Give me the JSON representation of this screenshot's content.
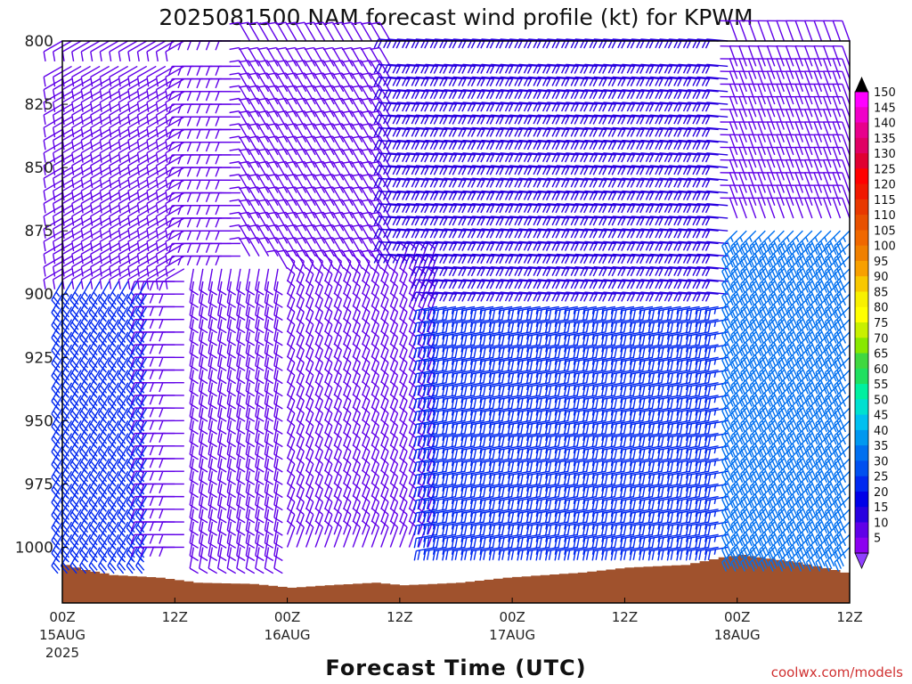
{
  "chart_data": {
    "type": "wind-barb-profile",
    "title": "2025081500 NAM forecast wind profile (kt) for KPWM",
    "xlabel": "Forecast Time (UTC)",
    "ylabel": "",
    "credit": "coolwx.com/models",
    "y_axis": {
      "ticks": [
        "800",
        "825",
        "850",
        "875",
        "900",
        "925",
        "950",
        "975",
        "1000"
      ],
      "range_hpa": [
        800,
        1022
      ]
    },
    "x_axis": {
      "range_hours": [
        0,
        84
      ],
      "ticks": [
        {
          "hour": 0,
          "label": "00Z",
          "sub": "15AUG",
          "sub2": "2025"
        },
        {
          "hour": 12,
          "label": "12Z",
          "sub": "",
          "sub2": ""
        },
        {
          "hour": 24,
          "label": "00Z",
          "sub": "16AUG",
          "sub2": ""
        },
        {
          "hour": 36,
          "label": "12Z",
          "sub": "",
          "sub2": ""
        },
        {
          "hour": 48,
          "label": "00Z",
          "sub": "17AUG",
          "sub2": ""
        },
        {
          "hour": 60,
          "label": "12Z",
          "sub": "",
          "sub2": ""
        },
        {
          "hour": 72,
          "label": "00Z",
          "sub": "18AUG",
          "sub2": ""
        },
        {
          "hour": 84,
          "label": "12Z",
          "sub": "",
          "sub2": ""
        }
      ]
    },
    "colorbar": {
      "labels": [
        "150",
        "145",
        "140",
        "135",
        "130",
        "125",
        "120",
        "115",
        "110",
        "105",
        "100",
        "95",
        "90",
        "85",
        "80",
        "75",
        "70",
        "65",
        "60",
        "55",
        "50",
        "45",
        "40",
        "35",
        "30",
        "25",
        "20",
        "15",
        "10",
        "5"
      ],
      "colors": [
        "#ff00ff",
        "#f000c8",
        "#e8008c",
        "#e00064",
        "#e00032",
        "#ff0000",
        "#f01800",
        "#e83800",
        "#e85000",
        "#f06800",
        "#f08000",
        "#f8a000",
        "#f8c800",
        "#f8f000",
        "#ffff00",
        "#c8f000",
        "#88e800",
        "#40d840",
        "#20e060",
        "#00f0a0",
        "#00e0d0",
        "#00c0f0",
        "#0098f0",
        "#0070f0",
        "#0050f0",
        "#0028f0",
        "#0000e8",
        "#2800e0",
        "#6000e8",
        "#8c00f0"
      ],
      "top_color": "#000000",
      "bottom_color": "#9040ff"
    },
    "terrain_color": "#a0522d",
    "barb_sampling": {
      "time_step_hours": 1,
      "levels_hpa": [
        800,
        810,
        815,
        820,
        825,
        830,
        835,
        840,
        845,
        850,
        855,
        860,
        865,
        870,
        875,
        880,
        885,
        890,
        895,
        900,
        905,
        910,
        915,
        920,
        925,
        930,
        935,
        940,
        945,
        950,
        955,
        960,
        965,
        970,
        975,
        980,
        985,
        990,
        995,
        1000
      ]
    },
    "surface_pressure_hpa": [
      {
        "hour": 0,
        "p": 1007
      },
      {
        "hour": 2,
        "p": 1009
      },
      {
        "hour": 5,
        "p": 1011
      },
      {
        "hour": 10,
        "p": 1012
      },
      {
        "hour": 14,
        "p": 1014
      },
      {
        "hour": 20,
        "p": 1014.5
      },
      {
        "hour": 24,
        "p": 1016
      },
      {
        "hour": 28,
        "p": 1015
      },
      {
        "hour": 33,
        "p": 1014
      },
      {
        "hour": 36,
        "p": 1015
      },
      {
        "hour": 42,
        "p": 1014
      },
      {
        "hour": 47,
        "p": 1012
      },
      {
        "hour": 55,
        "p": 1010
      },
      {
        "hour": 60,
        "p": 1008
      },
      {
        "hour": 66,
        "p": 1007
      },
      {
        "hour": 70,
        "p": 1004
      },
      {
        "hour": 72,
        "p": 1003
      },
      {
        "hour": 74,
        "p": 1004
      },
      {
        "hour": 78,
        "p": 1006
      },
      {
        "hour": 82,
        "p": 1009
      },
      {
        "hour": 84,
        "p": 1011
      }
    ],
    "wind_regions": [
      {
        "hours": [
          0,
          14
        ],
        "levels": [
          800,
          890
        ],
        "dir_deg": 240,
        "speed_kt": 12
      },
      {
        "hours": [
          0,
          10
        ],
        "levels": [
          890,
          1000
        ],
        "dir_deg": 210,
        "speed_kt": 25
      },
      {
        "hours": [
          14,
          24
        ],
        "levels": [
          890,
          1000
        ],
        "dir_deg": 190,
        "speed_kt": 12
      },
      {
        "hours": [
          20,
          36
        ],
        "levels": [
          800,
          890
        ],
        "dir_deg": 330,
        "speed_kt": 12
      },
      {
        "hours": [
          24,
          40
        ],
        "levels": [
          890,
          1000
        ],
        "dir_deg": 20,
        "speed_kt": 10
      },
      {
        "hours": [
          36,
          72
        ],
        "levels": [
          800,
          900
        ],
        "dir_deg": 275,
        "speed_kt": 18
      },
      {
        "hours": [
          40,
          72
        ],
        "levels": [
          900,
          1000
        ],
        "dir_deg": 260,
        "speed_kt": 25
      },
      {
        "hours": [
          72,
          84
        ],
        "levels": [
          800,
          870
        ],
        "dir_deg": 340,
        "speed_kt": 12
      },
      {
        "hours": [
          72,
          84
        ],
        "levels": [
          870,
          1000
        ],
        "dir_deg": 225,
        "speed_kt": 35
      }
    ]
  }
}
